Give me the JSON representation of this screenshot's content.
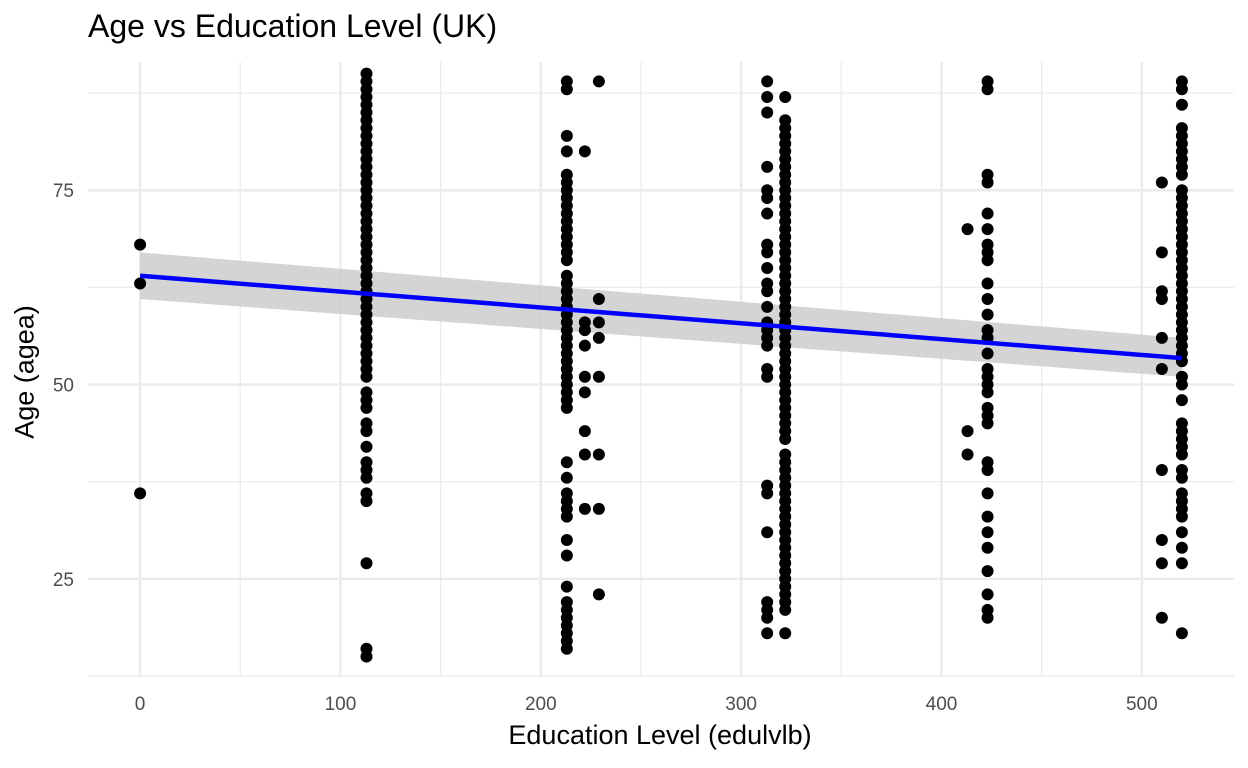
{
  "chart_data": {
    "type": "scatter",
    "title": "Age vs Education Level (UK)",
    "xlabel": "Education Level (edulvlb)",
    "ylabel": "Age (agea)",
    "xlim": [
      -26,
      546
    ],
    "ylim": [
      12.5,
      91.5
    ],
    "x_ticks": [
      0,
      100,
      200,
      300,
      400,
      500
    ],
    "y_ticks": [
      25,
      50,
      75
    ],
    "grid": true,
    "colors": {
      "points": "#000000",
      "trend_line": "#0000ff",
      "confidence_band": "#cccccc",
      "grid": "#ebebeb"
    },
    "columns": [
      {
        "x": 0,
        "ages": [
          68,
          63,
          36
        ]
      },
      {
        "x": 113,
        "ages": [
          90,
          89,
          88,
          87,
          86,
          85,
          84,
          83,
          82,
          81,
          80,
          79,
          78,
          77,
          76,
          75,
          74,
          73,
          72,
          71,
          70,
          69,
          68,
          67,
          66,
          65,
          64,
          63,
          62,
          61,
          60,
          59,
          58,
          57,
          56,
          55,
          54,
          53,
          52,
          51,
          49,
          48,
          47,
          45,
          44,
          42,
          40,
          39,
          38,
          36,
          35,
          27,
          16,
          15
        ]
      },
      {
        "x": 213,
        "ages": [
          89,
          88,
          75,
          74,
          73,
          72,
          71,
          70,
          69,
          68,
          67,
          66,
          64,
          63,
          62,
          61,
          60,
          59,
          58,
          57,
          56,
          55,
          54,
          53,
          52,
          51,
          50,
          49,
          48,
          47,
          40,
          38,
          36,
          35,
          34,
          33,
          30,
          28,
          24,
          22,
          21,
          20,
          19,
          18,
          17,
          16,
          82,
          80,
          77,
          76
        ]
      },
      {
        "x": 222,
        "ages": [
          80,
          58,
          57,
          55,
          51,
          49,
          44,
          41,
          34
        ]
      },
      {
        "x": 229,
        "ages": [
          89,
          61,
          58,
          56,
          51,
          41,
          34,
          23
        ]
      },
      {
        "x": 313,
        "ages": [
          89,
          87,
          85,
          78,
          75,
          74,
          72,
          68,
          67,
          65,
          63,
          62,
          60,
          58,
          57,
          56,
          55,
          52,
          51,
          37,
          36,
          31,
          22,
          21,
          20,
          18
        ]
      },
      {
        "x": 322,
        "ages": [
          87,
          84,
          83,
          82,
          81,
          80,
          79,
          78,
          77,
          76,
          75,
          74,
          73,
          72,
          71,
          70,
          69,
          68,
          67,
          66,
          65,
          64,
          63,
          62,
          61,
          60,
          59,
          58,
          57,
          56,
          55,
          54,
          53,
          52,
          51,
          50,
          49,
          48,
          47,
          46,
          45,
          44,
          43,
          41,
          40,
          39,
          38,
          37,
          36,
          35,
          34,
          33,
          32,
          31,
          30,
          29,
          28,
          27,
          26,
          25,
          24,
          23,
          22,
          21,
          18
        ]
      },
      {
        "x": 413,
        "ages": [
          70,
          44,
          41
        ]
      },
      {
        "x": 423,
        "ages": [
          89,
          88,
          77,
          76,
          72,
          70,
          68,
          67,
          66,
          63,
          61,
          59,
          57,
          56,
          54,
          52,
          51,
          50,
          49,
          47,
          46,
          45,
          40,
          39,
          36,
          33,
          31,
          29,
          26,
          23,
          21,
          20
        ]
      },
      {
        "x": 510,
        "ages": [
          76,
          67,
          62,
          61,
          56,
          52,
          39,
          30,
          27,
          20
        ]
      },
      {
        "x": 520,
        "ages": [
          89,
          88,
          86,
          83,
          82,
          81,
          80,
          79,
          78,
          77,
          75,
          74,
          73,
          72,
          71,
          70,
          69,
          68,
          67,
          66,
          65,
          64,
          63,
          62,
          61,
          60,
          59,
          58,
          57,
          56,
          55,
          54,
          53,
          51,
          50,
          48,
          45,
          44,
          43,
          42,
          41,
          39,
          38,
          36,
          35,
          34,
          33,
          31,
          29,
          27,
          18
        ]
      }
    ],
    "trend": {
      "x": [
        0,
        520
      ],
      "y": [
        64.0,
        53.4
      ],
      "ci_lower": [
        61.0,
        51.0
      ],
      "ci_upper": [
        67.0,
        56.0
      ]
    }
  }
}
